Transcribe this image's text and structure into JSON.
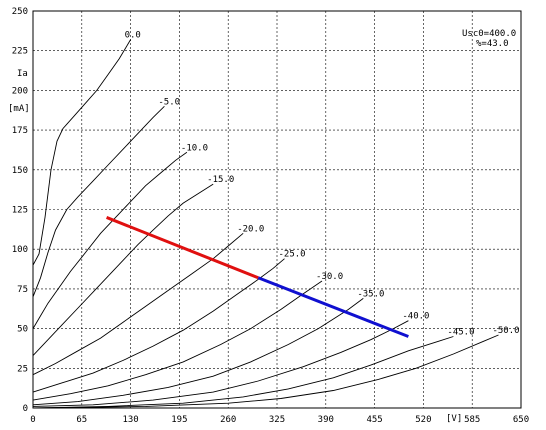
{
  "chart_data": {
    "type": "line",
    "title": "",
    "xlabel": "[V]",
    "ylabel": "Ia",
    "yunit": "[mA]",
    "xlim": [
      0,
      650
    ],
    "ylim": [
      0,
      250
    ],
    "grid": true,
    "x_ticks": [
      {
        "v": 0,
        "label": "0"
      },
      {
        "v": 65,
        "label": "65"
      },
      {
        "v": 130,
        "label": "130"
      },
      {
        "v": 195,
        "label": "195"
      },
      {
        "v": 260,
        "label": "260"
      },
      {
        "v": 325,
        "label": "325"
      },
      {
        "v": 390,
        "label": "390"
      },
      {
        "v": 455,
        "label": "455"
      },
      {
        "v": 520,
        "label": "520"
      },
      {
        "v": 585,
        "label": "585"
      },
      {
        "v": 650,
        "label": "650"
      }
    ],
    "y_ticks": [
      {
        "v": 0,
        "label": "0"
      },
      {
        "v": 25,
        "label": "25"
      },
      {
        "v": 50,
        "label": "50"
      },
      {
        "v": 75,
        "label": "75"
      },
      {
        "v": 100,
        "label": "100"
      },
      {
        "v": 125,
        "label": "125"
      },
      {
        "v": 150,
        "label": "150"
      },
      {
        "v": 175,
        "label": "175"
      },
      {
        "v": 200,
        "label": "200"
      },
      {
        "v": 225,
        "label": "225"
      },
      {
        "v": 250,
        "label": "250"
      }
    ],
    "annotations": [
      "Usc0=400.0",
      "%=43.0"
    ],
    "series": [
      {
        "name": "0.0",
        "points": [
          [
            0,
            90
          ],
          [
            8,
            97
          ],
          [
            16,
            120
          ],
          [
            24,
            150
          ],
          [
            32,
            168
          ],
          [
            40,
            176
          ],
          [
            55,
            184
          ],
          [
            70,
            192
          ],
          [
            85,
            200
          ],
          [
            100,
            210
          ],
          [
            115,
            220
          ],
          [
            130,
            232
          ]
        ]
      },
      {
        "name": "-5.0",
        "points": [
          [
            0,
            70
          ],
          [
            10,
            82
          ],
          [
            20,
            98
          ],
          [
            30,
            112
          ],
          [
            45,
            125
          ],
          [
            60,
            133
          ],
          [
            80,
            143
          ],
          [
            100,
            153
          ],
          [
            120,
            163
          ],
          [
            140,
            173
          ],
          [
            160,
            183
          ],
          [
            175,
            190
          ]
        ]
      },
      {
        "name": "-10.0",
        "points": [
          [
            0,
            50
          ],
          [
            10,
            58
          ],
          [
            20,
            66
          ],
          [
            35,
            76
          ],
          [
            50,
            86
          ],
          [
            70,
            98
          ],
          [
            90,
            110
          ],
          [
            110,
            120
          ],
          [
            130,
            130
          ],
          [
            150,
            140
          ],
          [
            170,
            148
          ],
          [
            190,
            156
          ],
          [
            205,
            161
          ]
        ]
      },
      {
        "name": "-15.0",
        "points": [
          [
            0,
            33
          ],
          [
            20,
            43
          ],
          [
            40,
            53
          ],
          [
            60,
            63
          ],
          [
            80,
            73
          ],
          [
            100,
            83
          ],
          [
            120,
            93
          ],
          [
            140,
            103
          ],
          [
            160,
            112
          ],
          [
            180,
            121
          ],
          [
            200,
            129
          ],
          [
            220,
            135
          ],
          [
            240,
            141
          ]
        ]
      },
      {
        "name": "-20.0",
        "points": [
          [
            0,
            21
          ],
          [
            30,
            28
          ],
          [
            60,
            36
          ],
          [
            90,
            44
          ],
          [
            120,
            54
          ],
          [
            150,
            64
          ],
          [
            180,
            74
          ],
          [
            210,
            84
          ],
          [
            240,
            94
          ],
          [
            260,
            102
          ],
          [
            280,
            110
          ]
        ]
      },
      {
        "name": "-25.0",
        "points": [
          [
            0,
            10
          ],
          [
            40,
            16
          ],
          [
            80,
            22
          ],
          [
            120,
            30
          ],
          [
            160,
            39
          ],
          [
            200,
            49
          ],
          [
            240,
            61
          ],
          [
            270,
            71
          ],
          [
            300,
            81
          ],
          [
            320,
            88
          ],
          [
            335,
            94
          ]
        ]
      },
      {
        "name": "-30.0",
        "points": [
          [
            0,
            5
          ],
          [
            50,
            9
          ],
          [
            100,
            14
          ],
          [
            150,
            21
          ],
          [
            200,
            29
          ],
          [
            250,
            40
          ],
          [
            290,
            50
          ],
          [
            330,
            62
          ],
          [
            360,
            72
          ],
          [
            385,
            80
          ]
        ]
      },
      {
        "name": "-35.0",
        "points": [
          [
            0,
            2
          ],
          [
            60,
            4
          ],
          [
            120,
            8
          ],
          [
            180,
            13
          ],
          [
            240,
            20
          ],
          [
            290,
            29
          ],
          [
            340,
            40
          ],
          [
            380,
            50
          ],
          [
            420,
            62
          ],
          [
            440,
            69
          ]
        ]
      },
      {
        "name": "-40.0",
        "points": [
          [
            0,
            1
          ],
          [
            80,
            2
          ],
          [
            160,
            5
          ],
          [
            240,
            10
          ],
          [
            300,
            17
          ],
          [
            360,
            26
          ],
          [
            410,
            35
          ],
          [
            450,
            43
          ],
          [
            480,
            50
          ],
          [
            500,
            55
          ]
        ]
      },
      {
        "name": "-45.0",
        "points": [
          [
            0,
            0
          ],
          [
            100,
            1
          ],
          [
            200,
            3
          ],
          [
            280,
            7
          ],
          [
            340,
            12
          ],
          [
            400,
            19
          ],
          [
            450,
            27
          ],
          [
            500,
            36
          ],
          [
            540,
            42
          ],
          [
            560,
            45
          ]
        ]
      },
      {
        "name": "-50.0",
        "points": [
          [
            0,
            0
          ],
          [
            150,
            1
          ],
          [
            260,
            3
          ],
          [
            330,
            6
          ],
          [
            400,
            11
          ],
          [
            460,
            18
          ],
          [
            510,
            25
          ],
          [
            560,
            34
          ],
          [
            600,
            42
          ],
          [
            620,
            46
          ]
        ]
      }
    ],
    "load_line": {
      "red": [
        [
          98,
          120
        ],
        [
          300,
          82
        ]
      ],
      "blue": [
        [
          300,
          82
        ],
        [
          500,
          45
        ]
      ],
      "colors": {
        "red": "#e01010",
        "blue": "#1010d0"
      }
    }
  }
}
